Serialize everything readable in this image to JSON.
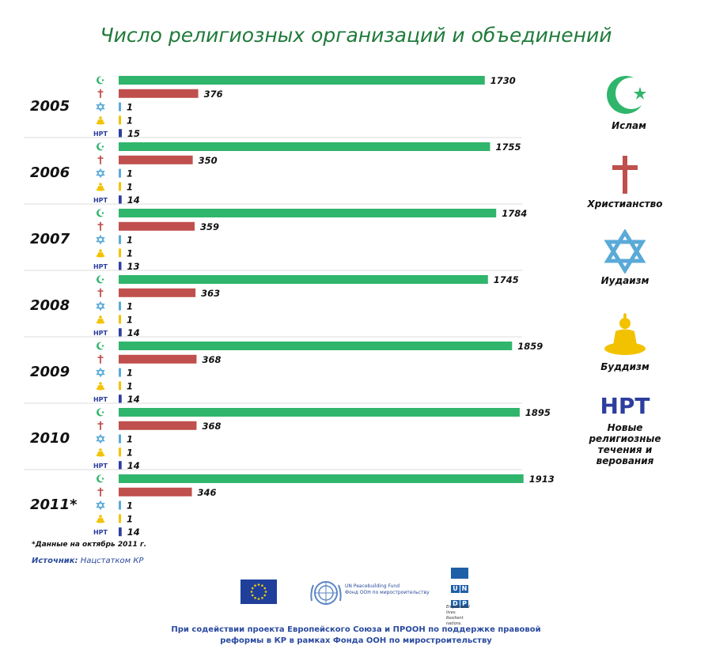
{
  "title": "Число религиозных организаций и объединений",
  "colors": {
    "islam": "#30b56c",
    "christianity": "#c0504d",
    "judaism": "#5aaad8",
    "buddhism": "#f2c200",
    "nrt": "#2e3e9e",
    "title": "#1f7a3a"
  },
  "legend": [
    {
      "key": "islam",
      "label": "Ислам",
      "icon": "crescent-star-icon"
    },
    {
      "key": "christianity",
      "label": "Христианство",
      "icon": "cross-icon"
    },
    {
      "key": "judaism",
      "label": "Иудаизм",
      "icon": "star-of-david-icon"
    },
    {
      "key": "buddhism",
      "label": "Буддизм",
      "icon": "buddha-icon"
    },
    {
      "key": "nrt",
      "label": "Новые религиозные течения и верования",
      "icon": "nrt-text-icon",
      "abbr": "НРТ"
    }
  ],
  "chart_data": {
    "type": "bar",
    "orientation": "horizontal",
    "title": "Число религиозных организаций и объединений",
    "categories": [
      "2005",
      "2006",
      "2007",
      "2008",
      "2009",
      "2010",
      "2011*"
    ],
    "series": [
      {
        "name": "Ислам",
        "values": [
          1730,
          1755,
          1784,
          1745,
          1859,
          1895,
          1913
        ]
      },
      {
        "name": "Христианство",
        "values": [
          376,
          350,
          359,
          363,
          368,
          368,
          346
        ]
      },
      {
        "name": "Иудаизм",
        "values": [
          1,
          1,
          1,
          1,
          1,
          1,
          1
        ]
      },
      {
        "name": "Буддизм",
        "values": [
          1,
          1,
          1,
          1,
          1,
          1,
          1
        ]
      },
      {
        "name": "Новые религиозные течения и верования",
        "values": [
          15,
          14,
          13,
          14,
          14,
          14,
          14
        ]
      }
    ],
    "xlim": [
      0,
      2000
    ],
    "grid": false,
    "legend_position": "right"
  },
  "footnote": "*Данные на октябрь 2011 г.",
  "source": {
    "label": "Источник:",
    "value": "Нацстатком КР"
  },
  "logos": {
    "un_fund_line1": "UN Peacebuilding Fund",
    "un_fund_line2": "Фонд ООН по миростроительству",
    "undp_letters": [
      "U",
      "N",
      "D",
      "P"
    ],
    "undp_tagline_1": "Empowered lives.",
    "undp_tagline_2": "Resilient nations."
  },
  "credits": "При содействии проекта Европейского Союза и ПРООН по поддержке правовой реформы в КР в рамках Фонда ООН по миростроительству"
}
